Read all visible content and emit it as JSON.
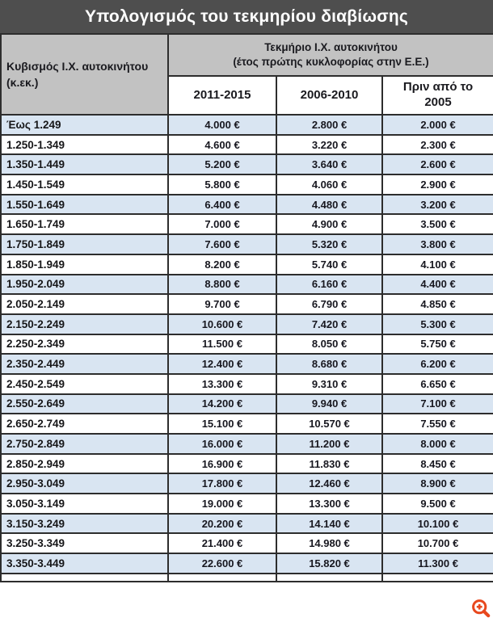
{
  "title": "Υπολογισμός του τεκμηρίου διαβίωσης",
  "chart_data": {
    "type": "table",
    "title": "Υπολογισμός του τεκμηρίου διαβίωσης",
    "row_header": {
      "line1": "Κυβισμός Ι.Χ. αυτοκινήτου",
      "line2": "(κ.εκ.)"
    },
    "column_group_header": {
      "line1": "Τεκμήριο Ι.Χ. αυτοκινήτου",
      "line2": "(έτος πρώτης κυκλοφορίας στην Ε.Ε.)"
    },
    "columns": [
      "2011-2015",
      "2006-2010",
      "Πριν από το 2005"
    ],
    "rows": [
      {
        "range": "Έως 1.249",
        "values": [
          "4.000 €",
          "2.800 €",
          "2.000 €"
        ]
      },
      {
        "range": "1.250-1.349",
        "values": [
          "4.600 €",
          "3.220 €",
          "2.300 €"
        ]
      },
      {
        "range": "1.350-1.449",
        "values": [
          "5.200 €",
          "3.640 €",
          "2.600 €"
        ]
      },
      {
        "range": "1.450-1.549",
        "values": [
          "5.800 €",
          "4.060 €",
          "2.900 €"
        ]
      },
      {
        "range": "1.550-1.649",
        "values": [
          "6.400 €",
          "4.480 €",
          "3.200 €"
        ]
      },
      {
        "range": "1.650-1.749",
        "values": [
          "7.000 €",
          "4.900 €",
          "3.500 €"
        ]
      },
      {
        "range": "1.750-1.849",
        "values": [
          "7.600 €",
          "5.320 €",
          "3.800 €"
        ]
      },
      {
        "range": "1.850-1.949",
        "values": [
          "8.200 €",
          "5.740 €",
          "4.100 €"
        ]
      },
      {
        "range": "1.950-2.049",
        "values": [
          "8.800 €",
          "6.160 €",
          "4.400 €"
        ]
      },
      {
        "range": "2.050-2.149",
        "values": [
          "9.700 €",
          "6.790 €",
          "4.850 €"
        ]
      },
      {
        "range": "2.150-2.249",
        "values": [
          "10.600 €",
          "7.420 €",
          "5.300 €"
        ]
      },
      {
        "range": "2.250-2.349",
        "values": [
          "11.500 €",
          "8.050 €",
          "5.750 €"
        ]
      },
      {
        "range": "2.350-2.449",
        "values": [
          "12.400 €",
          "8.680 €",
          "6.200 €"
        ]
      },
      {
        "range": "2.450-2.549",
        "values": [
          "13.300 €",
          "9.310 €",
          "6.650 €"
        ]
      },
      {
        "range": "2.550-2.649",
        "values": [
          "14.200 €",
          "9.940 €",
          "7.100 €"
        ]
      },
      {
        "range": "2.650-2.749",
        "values": [
          "15.100 €",
          "10.570 €",
          "7.550 €"
        ]
      },
      {
        "range": "2.750-2.849",
        "values": [
          "16.000 €",
          "11.200 €",
          "8.000 €"
        ]
      },
      {
        "range": "2.850-2.949",
        "values": [
          "16.900 €",
          "11.830 €",
          "8.450 €"
        ]
      },
      {
        "range": "2.950-3.049",
        "values": [
          "17.800 €",
          "12.460 €",
          "8.900 €"
        ]
      },
      {
        "range": "3.050-3.149",
        "values": [
          "19.000 €",
          "13.300 €",
          "9.500 €"
        ]
      },
      {
        "range": "3.150-3.249",
        "values": [
          "20.200 €",
          "14.140 €",
          "10.100 €"
        ]
      },
      {
        "range": "3.250-3.349",
        "values": [
          "21.400 €",
          "14.980 €",
          "10.700 €"
        ]
      },
      {
        "range": "3.350-3.449",
        "values": [
          "22.600 €",
          "15.820 €",
          "11.300 €"
        ]
      }
    ],
    "layout": {
      "alternating_row_shading": "first row shaded, every other row",
      "first_column_align": "left",
      "value_columns_align": "center"
    }
  },
  "icons": {
    "zoom": "magnifier-plus"
  },
  "colors": {
    "title_bar_bg": "#4e4e4e",
    "title_text": "#ffffff",
    "header_bg": "#c2c2c2",
    "row_alt_bg": "#d9e5f2",
    "row_bg": "#ffffff",
    "border": "#2d2d2d",
    "text": "#1a1a1f",
    "zoom_icon": "#e8481e"
  }
}
